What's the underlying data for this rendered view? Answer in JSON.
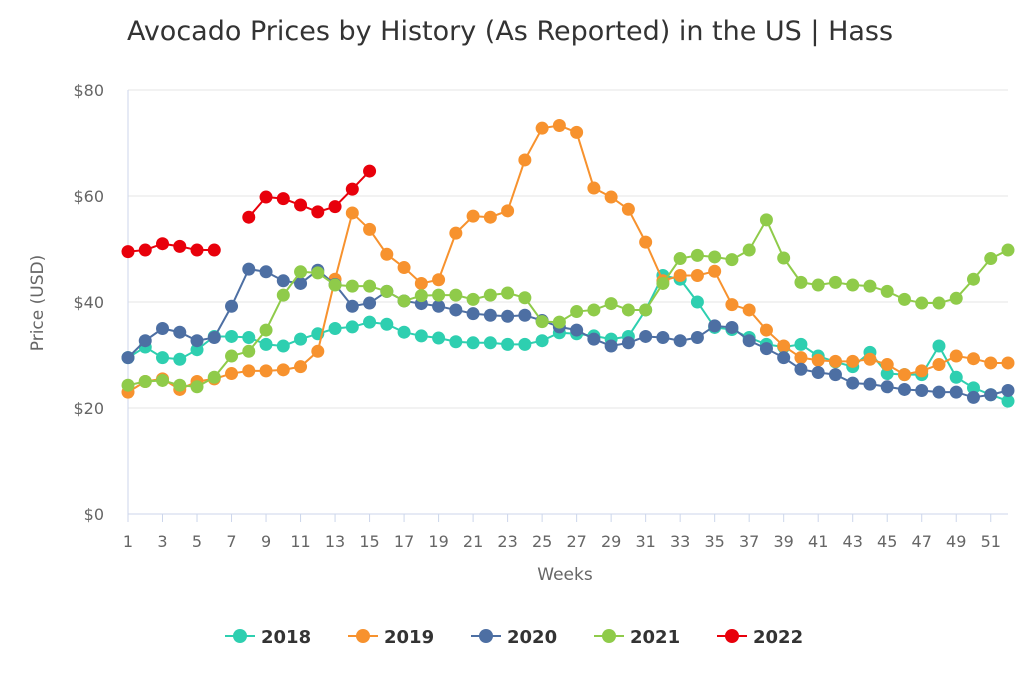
{
  "chart_data": {
    "type": "line",
    "title": "Avocado Prices by History (As Reported) in the US | Hass",
    "xlabel": "Weeks",
    "ylabel": "Price (USD)",
    "x": [
      1,
      2,
      3,
      4,
      5,
      6,
      7,
      8,
      9,
      10,
      11,
      12,
      13,
      14,
      15,
      16,
      17,
      18,
      19,
      20,
      21,
      22,
      23,
      24,
      25,
      26,
      27,
      28,
      29,
      30,
      31,
      32,
      33,
      34,
      35,
      36,
      37,
      38,
      39,
      40,
      41,
      42,
      43,
      44,
      45,
      46,
      47,
      48,
      49,
      50,
      51,
      52
    ],
    "x_tick_labels": [
      "1",
      "3",
      "5",
      "7",
      "9",
      "11",
      "13",
      "15",
      "17",
      "19",
      "21",
      "23",
      "25",
      "27",
      "29",
      "31",
      "33",
      "35",
      "37",
      "39",
      "41",
      "43",
      "45",
      "47",
      "49",
      "51"
    ],
    "y_tick_labels": [
      "$0",
      "$20",
      "$40",
      "$60",
      "$80"
    ],
    "ylim": [
      0,
      80
    ],
    "grid": true,
    "legend_position": "bottom",
    "series": [
      {
        "name": "2018",
        "color": "#2ecfb0",
        "values": [
          29.5,
          31.5,
          29.5,
          29.2,
          31,
          33.5,
          33.5,
          33.3,
          32,
          31.7,
          33,
          34,
          35,
          35.3,
          36.2,
          35.8,
          34.3,
          33.6,
          33.2,
          32.5,
          32.3,
          32.3,
          32,
          32,
          32.7,
          34.2,
          34,
          33.6,
          33,
          33.5,
          38.5,
          45,
          44.3,
          40,
          35.2,
          34.8,
          33.3,
          32,
          31.5,
          32,
          29.8,
          28.7,
          27.8,
          30.5,
          26.5,
          26.3,
          26.3,
          31.7,
          25.8,
          23.8,
          22.5,
          21.3
        ]
      },
      {
        "name": "2019",
        "color": "#f7922e",
        "values": [
          23,
          25,
          25.5,
          23.5,
          25,
          25.5,
          26.5,
          27,
          27,
          27.2,
          27.8,
          30.7,
          44.3,
          56.8,
          53.7,
          49,
          46.5,
          43.5,
          44.2,
          53,
          56.2,
          56,
          57.2,
          66.8,
          72.8,
          73.3,
          72,
          61.5,
          59.8,
          57.5,
          51.3,
          44,
          45,
          45,
          45.8,
          39.5,
          38.5,
          34.7,
          31.7,
          29.5,
          29,
          28.8,
          28.8,
          29.2,
          28.2,
          26.3,
          27,
          28.2,
          29.8,
          29.3,
          28.5,
          28.5
        ]
      },
      {
        "name": "2020",
        "color": "#4d6fa3",
        "values": [
          29.5,
          32.7,
          35,
          34.3,
          32.7,
          33.3,
          39.2,
          46.2,
          45.7,
          44,
          43.5,
          46,
          43.3,
          39.2,
          39.8,
          42,
          40.2,
          39.7,
          39.2,
          38.5,
          37.8,
          37.5,
          37.3,
          37.5,
          36.5,
          35.3,
          34.7,
          33,
          31.7,
          32.3,
          33.5,
          33.3,
          32.7,
          33.3,
          35.5,
          35.2,
          32.7,
          31.2,
          29.5,
          27.3,
          26.7,
          26.3,
          24.7,
          24.5,
          24,
          23.5,
          23.3,
          23,
          23,
          22,
          22.5,
          23.3
        ]
      },
      {
        "name": "2021",
        "color": "#8fcb4a",
        "values": [
          24.3,
          25,
          25.2,
          24.3,
          24,
          25.8,
          29.8,
          30.7,
          34.7,
          41.3,
          45.7,
          45.5,
          43.2,
          43,
          43,
          42,
          40.2,
          41.2,
          41.3,
          41.3,
          40.5,
          41.3,
          41.7,
          40.8,
          36.3,
          36.2,
          38.2,
          38.5,
          39.7,
          38.5,
          38.5,
          43.5,
          48.2,
          48.8,
          48.5,
          48,
          49.8,
          55.5,
          48.3,
          43.7,
          43.2,
          43.7,
          43.2,
          43,
          42,
          40.5,
          39.8,
          39.8,
          40.7,
          44.3,
          48.2,
          49.8
        ]
      },
      {
        "name": "2022",
        "color": "#e8000b",
        "values": [
          49.5,
          49.8,
          51,
          50.5,
          49.8,
          49.8,
          null,
          56,
          59.8,
          59.5,
          58.3,
          57,
          58,
          61.3,
          64.7,
          null,
          null,
          null,
          null,
          null,
          null,
          null,
          null,
          null,
          null,
          null,
          null,
          null,
          null,
          null,
          null,
          null,
          null,
          null,
          null,
          null,
          null,
          null,
          null,
          null,
          null,
          null,
          null,
          null,
          null,
          null,
          null,
          null,
          null,
          null,
          null,
          null
        ]
      }
    ]
  }
}
